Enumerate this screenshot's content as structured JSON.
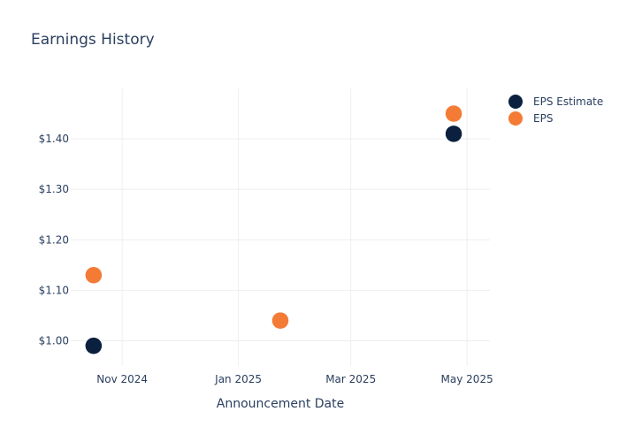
{
  "chart_data": {
    "type": "scatter",
    "title": "Earnings History",
    "xlabel": "Announcement Date",
    "ylabel": "",
    "x_ticks": [
      {
        "date": "2024-11-01",
        "label": "Nov 2024"
      },
      {
        "date": "2025-01-01",
        "label": "Jan 2025"
      },
      {
        "date": "2025-03-01",
        "label": "Mar 2025"
      },
      {
        "date": "2025-05-01",
        "label": "May 2025"
      }
    ],
    "y_ticks": [
      {
        "value": 1.0,
        "label": "$1.00"
      },
      {
        "value": 1.1,
        "label": "$1.10"
      },
      {
        "value": 1.2,
        "label": "$1.20"
      },
      {
        "value": 1.3,
        "label": "$1.30"
      },
      {
        "value": 1.4,
        "label": "$1.40"
      }
    ],
    "xlim": [
      "2024-10-05",
      "2025-05-13"
    ],
    "ylim": [
      0.95,
      1.5
    ],
    "grid": true,
    "legend_position": "top-right",
    "series": [
      {
        "name": "EPS Estimate",
        "color": "#0b1f3f",
        "points": [
          {
            "x": "2024-10-17",
            "y": 0.99
          },
          {
            "x": "2025-01-23",
            "y": 1.04
          },
          {
            "x": "2025-04-24",
            "y": 1.41
          }
        ]
      },
      {
        "name": "EPS",
        "color": "#f47b35",
        "points": [
          {
            "x": "2024-10-17",
            "y": 1.13
          },
          {
            "x": "2025-01-23",
            "y": 1.04
          },
          {
            "x": "2025-04-24",
            "y": 1.45
          }
        ]
      }
    ]
  }
}
